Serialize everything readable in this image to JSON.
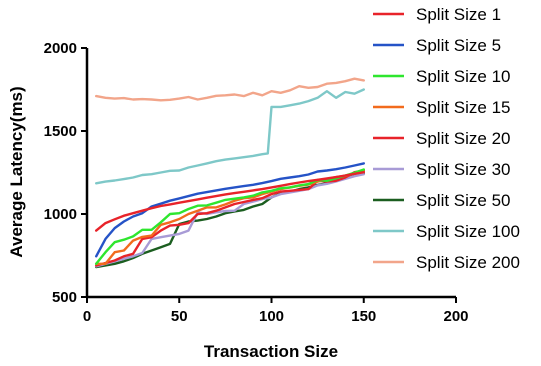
{
  "chart_data": {
    "type": "line",
    "title": "",
    "xlabel": "Transaction Size",
    "ylabel": "Average Latency(ms)",
    "xlim": [
      0,
      200
    ],
    "ylim": [
      500,
      2000
    ],
    "xticks": [
      0,
      50,
      100,
      150,
      200
    ],
    "yticks": [
      500,
      1000,
      1500,
      2000
    ],
    "grid": false,
    "legend_position": "right",
    "series": [
      {
        "name": "Split Size 1",
        "color": "#e8232a",
        "x": [
          5,
          10,
          15,
          20,
          25,
          30,
          35,
          40,
          45,
          50,
          55,
          60,
          65,
          70,
          75,
          80,
          85,
          90,
          95,
          100,
          105,
          110,
          115,
          120,
          125,
          130,
          135,
          140,
          145,
          150
        ],
        "y": [
          900,
          945,
          968,
          990,
          1005,
          1020,
          1035,
          1048,
          1058,
          1068,
          1078,
          1088,
          1098,
          1108,
          1118,
          1126,
          1134,
          1142,
          1150,
          1160,
          1170,
          1180,
          1190,
          1198,
          1206,
          1214,
          1222,
          1232,
          1242,
          1252
        ]
      },
      {
        "name": "Split Size 5",
        "color": "#2553c7",
        "x": [
          5,
          10,
          15,
          20,
          25,
          30,
          35,
          40,
          45,
          50,
          55,
          60,
          65,
          70,
          75,
          80,
          85,
          90,
          95,
          100,
          105,
          110,
          115,
          120,
          125,
          130,
          135,
          140,
          145,
          150
        ],
        "y": [
          745,
          850,
          915,
          955,
          985,
          1005,
          1045,
          1062,
          1080,
          1094,
          1108,
          1122,
          1132,
          1142,
          1152,
          1160,
          1168,
          1176,
          1186,
          1198,
          1212,
          1220,
          1228,
          1238,
          1256,
          1262,
          1270,
          1280,
          1292,
          1305
        ]
      },
      {
        "name": "Split Size 10",
        "color": "#2ee62e",
        "x": [
          5,
          10,
          15,
          20,
          25,
          30,
          35,
          40,
          45,
          50,
          55,
          60,
          65,
          70,
          75,
          80,
          85,
          90,
          95,
          100,
          105,
          110,
          115,
          120,
          125,
          130,
          135,
          140,
          145,
          150
        ],
        "y": [
          700,
          770,
          830,
          845,
          865,
          905,
          905,
          950,
          1000,
          1005,
          1030,
          1050,
          1052,
          1068,
          1085,
          1092,
          1100,
          1110,
          1130,
          1140,
          1155,
          1160,
          1172,
          1180,
          1205,
          1200,
          1215,
          1232,
          1248,
          1268
        ]
      },
      {
        "name": "Split Size 15",
        "color": "#f26b1d",
        "x": [
          5,
          10,
          15,
          20,
          25,
          30,
          35,
          40,
          45,
          50,
          55,
          60,
          65,
          70,
          75,
          80,
          85,
          90,
          95,
          100,
          105,
          110,
          115,
          120,
          125,
          130,
          135,
          140,
          145,
          150
        ],
        "y": [
          700,
          700,
          770,
          780,
          840,
          862,
          870,
          935,
          950,
          970,
          1000,
          1020,
          1040,
          1040,
          1058,
          1080,
          1095,
          1100,
          1120,
          1135,
          1150,
          1160,
          1170,
          1178,
          1195,
          1210,
          1222,
          1230,
          1244,
          1256
        ]
      },
      {
        "name": "Split Size 20",
        "color": "#e8232a",
        "x": [
          5,
          10,
          15,
          20,
          25,
          30,
          35,
          40,
          45,
          50,
          55,
          60,
          65,
          70,
          75,
          80,
          85,
          90,
          95,
          100,
          105,
          110,
          115,
          120,
          125,
          130,
          135,
          140,
          145,
          150
        ],
        "y": [
          690,
          705,
          720,
          745,
          760,
          850,
          860,
          900,
          930,
          935,
          945,
          1000,
          1005,
          1020,
          1040,
          1060,
          1072,
          1085,
          1095,
          1120,
          1135,
          1140,
          1145,
          1150,
          1200,
          1195,
          1200,
          1220,
          1252,
          1262
        ]
      },
      {
        "name": "Split Size 30",
        "color": "#a89bd6",
        "x": [
          5,
          10,
          15,
          20,
          25,
          30,
          35,
          40,
          45,
          50,
          55,
          60,
          65,
          70,
          75,
          80,
          85,
          90,
          95,
          100,
          105,
          110,
          115,
          120,
          125,
          130,
          135,
          140,
          145,
          150
        ],
        "y": [
          685,
          700,
          715,
          730,
          745,
          765,
          850,
          860,
          870,
          880,
          900,
          1010,
          1000,
          1010,
          1018,
          1020,
          1060,
          1075,
          1090,
          1100,
          1120,
          1130,
          1140,
          1150,
          1172,
          1182,
          1196,
          1212,
          1228,
          1240
        ]
      },
      {
        "name": "Split Size 50",
        "color": "#1b5e20",
        "x": [
          5,
          10,
          15,
          20,
          25,
          30,
          35,
          40,
          45,
          50,
          55,
          60,
          65,
          70,
          75,
          80,
          85,
          90,
          95,
          100,
          105,
          110,
          115,
          120,
          125,
          130,
          135,
          140,
          145,
          150
        ],
        "y": [
          680,
          690,
          700,
          715,
          735,
          760,
          780,
          800,
          820,
          940,
          955,
          960,
          970,
          985,
          1005,
          1015,
          1025,
          1045,
          1060,
          1100,
          1125,
          1135,
          1150,
          1160,
          1175,
          1185,
          1200,
          1215,
          1230,
          1245
        ]
      },
      {
        "name": "Split Size 100",
        "color": "#7ec8c8",
        "x": [
          5,
          10,
          15,
          20,
          25,
          30,
          35,
          40,
          45,
          50,
          55,
          60,
          65,
          70,
          75,
          80,
          85,
          90,
          95,
          98,
          100,
          105,
          110,
          115,
          120,
          125,
          130,
          135,
          140,
          145,
          150
        ],
        "y": [
          1185,
          1195,
          1202,
          1210,
          1220,
          1235,
          1240,
          1250,
          1260,
          1262,
          1280,
          1292,
          1305,
          1318,
          1328,
          1335,
          1342,
          1350,
          1360,
          1365,
          1645,
          1645,
          1655,
          1665,
          1680,
          1700,
          1740,
          1700,
          1735,
          1725,
          1750
        ]
      },
      {
        "name": "Split Size 200",
        "color": "#f2a58a",
        "x": [
          5,
          10,
          15,
          20,
          25,
          30,
          35,
          40,
          45,
          50,
          55,
          60,
          65,
          70,
          75,
          80,
          85,
          90,
          95,
          100,
          105,
          110,
          115,
          120,
          125,
          130,
          135,
          140,
          145,
          150
        ],
        "y": [
          1710,
          1700,
          1695,
          1698,
          1690,
          1692,
          1690,
          1685,
          1688,
          1695,
          1705,
          1690,
          1700,
          1712,
          1715,
          1720,
          1710,
          1730,
          1715,
          1740,
          1730,
          1745,
          1770,
          1760,
          1765,
          1785,
          1790,
          1800,
          1815,
          1805
        ]
      }
    ]
  }
}
